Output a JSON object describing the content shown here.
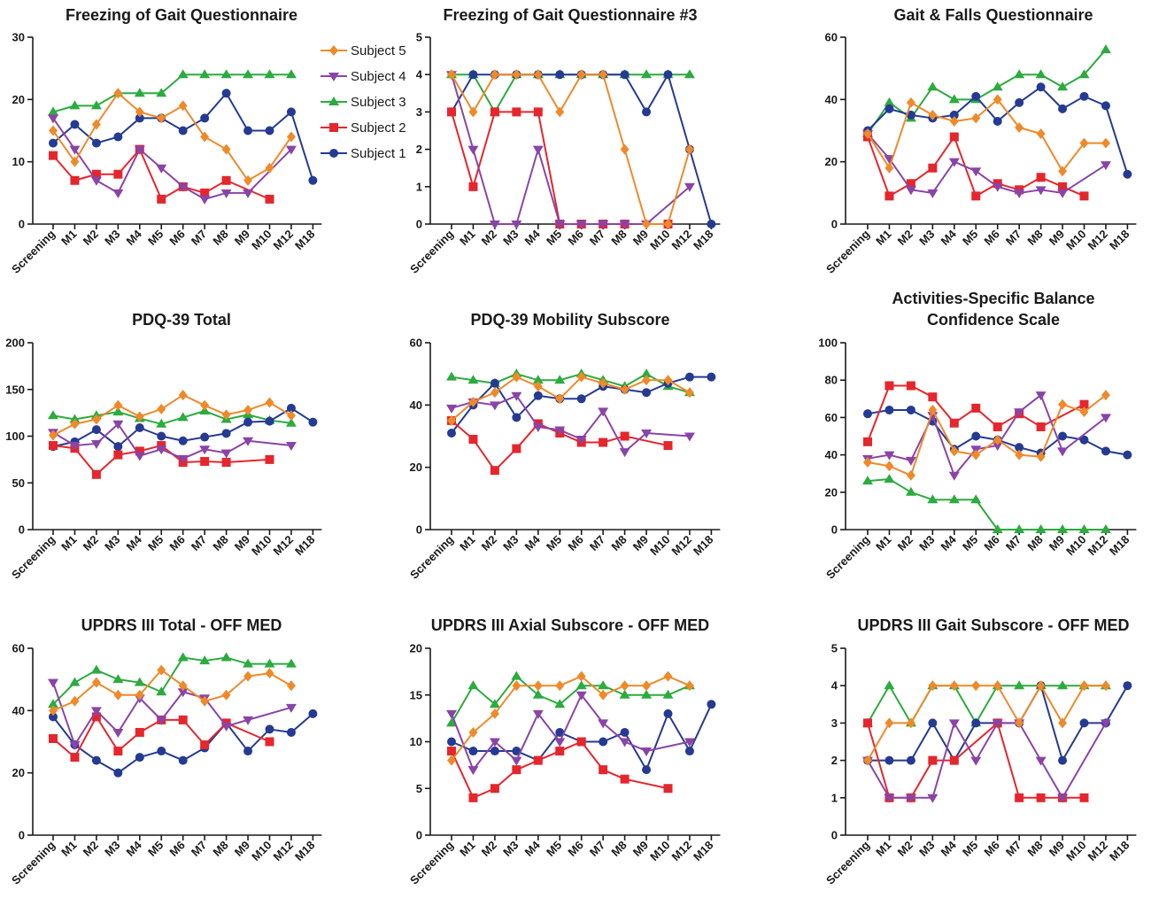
{
  "legend": [
    {
      "series": "s5",
      "label": "Subject 5"
    },
    {
      "series": "s4",
      "label": "Subject 4"
    },
    {
      "series": "s3",
      "label": "Subject 3"
    },
    {
      "series": "s2",
      "label": "Subject 2"
    },
    {
      "series": "s1",
      "label": "Subject 1"
    }
  ],
  "series_styles": {
    "s5": {
      "color": "#ee8a2a",
      "marker": "diamond"
    },
    "s4": {
      "color": "#8a44a8",
      "marker": "triangle-down"
    },
    "s3": {
      "color": "#2cab3e",
      "marker": "triangle-up"
    },
    "s2": {
      "color": "#e5262d",
      "marker": "square"
    },
    "s1": {
      "color": "#253a92",
      "marker": "circle"
    }
  },
  "chart_data": [
    {
      "type": "line",
      "title": [
        "Freezing of Gait Questionnaire"
      ],
      "categories": [
        "Screening",
        "M1",
        "M2",
        "M3",
        "M4",
        "M5",
        "M6",
        "M7",
        "M8",
        "M9",
        "M10",
        "M12",
        "M18"
      ],
      "ylim": [
        0,
        30
      ],
      "yticks": [
        0,
        10,
        20,
        30
      ],
      "series": [
        {
          "id": "s3",
          "name": "Subject 3",
          "values": [
            18,
            19,
            19,
            21,
            21,
            21,
            24,
            24,
            24,
            24,
            24,
            24,
            null
          ]
        },
        {
          "id": "s1",
          "name": "Subject 1",
          "values": [
            13,
            16,
            13,
            14,
            17,
            17,
            15,
            17,
            21,
            15,
            15,
            18,
            7
          ]
        },
        {
          "id": "s2",
          "name": "Subject 2",
          "values": [
            11,
            7,
            8,
            8,
            12,
            4,
            6,
            5,
            7,
            null,
            4,
            null,
            null
          ]
        },
        {
          "id": "s4",
          "name": "Subject 4",
          "values": [
            17,
            12,
            7,
            5,
            12,
            9,
            6,
            4,
            5,
            5,
            null,
            12,
            null
          ]
        },
        {
          "id": "s5",
          "name": "Subject 5",
          "values": [
            15,
            10,
            16,
            21,
            18,
            17,
            19,
            14,
            12,
            7,
            9,
            14,
            null
          ]
        }
      ]
    },
    {
      "type": "line",
      "title": [
        "Freezing of Gait Questionnaire #3"
      ],
      "categories": [
        "Screening",
        "M1",
        "M2",
        "M3",
        "M4",
        "M5",
        "M6",
        "M7",
        "M8",
        "M9",
        "M10",
        "M12",
        "M18"
      ],
      "ylim": [
        0,
        5
      ],
      "yticks": [
        0,
        1,
        2,
        3,
        4,
        5
      ],
      "series": [
        {
          "id": "s3",
          "name": "Subject 3",
          "values": [
            4,
            4,
            3,
            4,
            4,
            4,
            4,
            4,
            4,
            4,
            4,
            4,
            null
          ]
        },
        {
          "id": "s1",
          "name": "Subject 1",
          "values": [
            3,
            4,
            4,
            4,
            4,
            4,
            4,
            4,
            4,
            3,
            4,
            2,
            0
          ]
        },
        {
          "id": "s2",
          "name": "Subject 2",
          "values": [
            3,
            1,
            3,
            3,
            3,
            0,
            0,
            0,
            0,
            null,
            0,
            null,
            null
          ]
        },
        {
          "id": "s4",
          "name": "Subject 4",
          "values": [
            4,
            2,
            0,
            0,
            2,
            0,
            0,
            0,
            0,
            0,
            null,
            1,
            null
          ]
        },
        {
          "id": "s5",
          "name": "Subject 5",
          "values": [
            4,
            3,
            4,
            4,
            4,
            3,
            4,
            4,
            2,
            0,
            0,
            2,
            null
          ]
        }
      ]
    },
    {
      "type": "line",
      "title": [
        "Gait & Falls Questionnaire"
      ],
      "categories": [
        "Screening",
        "M1",
        "M2",
        "M3",
        "M4",
        "M5",
        "M6",
        "M7",
        "M8",
        "M9",
        "M10",
        "M12",
        "M18"
      ],
      "ylim": [
        0,
        60
      ],
      "yticks": [
        0,
        20,
        40,
        60
      ],
      "series": [
        {
          "id": "s3",
          "name": "Subject 3",
          "values": [
            29,
            39,
            34,
            44,
            40,
            40,
            44,
            48,
            48,
            44,
            48,
            56,
            null
          ]
        },
        {
          "id": "s1",
          "name": "Subject 1",
          "values": [
            30,
            37,
            35,
            34,
            35,
            41,
            33,
            39,
            44,
            37,
            41,
            38,
            16
          ]
        },
        {
          "id": "s2",
          "name": "Subject 2",
          "values": [
            28,
            9,
            13,
            18,
            28,
            9,
            13,
            11,
            15,
            12,
            9,
            null,
            null
          ]
        },
        {
          "id": "s4",
          "name": "Subject 4",
          "values": [
            29,
            21,
            11,
            10,
            20,
            17,
            12,
            10,
            11,
            10,
            null,
            19,
            null
          ]
        },
        {
          "id": "s5",
          "name": "Subject 5",
          "values": [
            29,
            18,
            39,
            35,
            33,
            34,
            40,
            31,
            29,
            17,
            26,
            26,
            null
          ]
        }
      ]
    },
    {
      "type": "line",
      "title": [
        "PDQ-39 Total"
      ],
      "categories": [
        "Screening",
        "M1",
        "M2",
        "M3",
        "M4",
        "M5",
        "M6",
        "M7",
        "M8",
        "M9",
        "M10",
        "M12",
        "M18"
      ],
      "ylim": [
        0,
        200
      ],
      "yticks": [
        0,
        50,
        100,
        150,
        200
      ],
      "series": [
        {
          "id": "s3",
          "name": "Subject 3",
          "values": [
            122,
            118,
            122,
            126,
            119,
            113,
            120,
            127,
            118,
            123,
            117,
            114,
            null
          ]
        },
        {
          "id": "s1",
          "name": "Subject 1",
          "values": [
            89,
            94,
            107,
            89,
            109,
            100,
            95,
            99,
            103,
            115,
            116,
            130,
            115
          ]
        },
        {
          "id": "s2",
          "name": "Subject 2",
          "values": [
            90,
            87,
            59,
            80,
            84,
            90,
            72,
            73,
            72,
            null,
            75,
            null,
            null
          ]
        },
        {
          "id": "s4",
          "name": "Subject 4",
          "values": [
            104,
            90,
            92,
            113,
            79,
            86,
            76,
            86,
            82,
            95,
            null,
            90,
            null
          ]
        },
        {
          "id": "s5",
          "name": "Subject 5",
          "values": [
            101,
            113,
            118,
            133,
            121,
            129,
            144,
            133,
            123,
            128,
            136,
            122,
            null
          ]
        }
      ]
    },
    {
      "type": "line",
      "title": [
        "PDQ-39 Mobility Subscore"
      ],
      "categories": [
        "Screening",
        "M1",
        "M2",
        "M3",
        "M4",
        "M5",
        "M6",
        "M7",
        "M8",
        "M9",
        "M10",
        "M12",
        "M18"
      ],
      "ylim": [
        0,
        60
      ],
      "yticks": [
        0,
        20,
        40,
        60
      ],
      "series": [
        {
          "id": "s3",
          "name": "Subject 3",
          "values": [
            49,
            48,
            47,
            50,
            48,
            48,
            50,
            48,
            46,
            50,
            46,
            44,
            null
          ]
        },
        {
          "id": "s1",
          "name": "Subject 1",
          "values": [
            31,
            40,
            47,
            36,
            43,
            42,
            42,
            46,
            45,
            44,
            47,
            49,
            49
          ]
        },
        {
          "id": "s2",
          "name": "Subject 2",
          "values": [
            35,
            29,
            19,
            26,
            34,
            31,
            28,
            28,
            30,
            null,
            27,
            null,
            null
          ]
        },
        {
          "id": "s4",
          "name": "Subject 4",
          "values": [
            39,
            41,
            40,
            43,
            33,
            32,
            29,
            38,
            25,
            31,
            null,
            30,
            null
          ]
        },
        {
          "id": "s5",
          "name": "Subject 5",
          "values": [
            35,
            41,
            44,
            49,
            46,
            42,
            49,
            47,
            45,
            48,
            48,
            44,
            null
          ]
        }
      ]
    },
    {
      "type": "line",
      "title": [
        "Activities-Specific Balance",
        "Confidence Scale"
      ],
      "categories": [
        "Screening",
        "M1",
        "M2",
        "M3",
        "M4",
        "M5",
        "M6",
        "M7",
        "M8",
        "M9",
        "M10",
        "M12",
        "M18"
      ],
      "ylim": [
        0,
        100
      ],
      "yticks": [
        0,
        20,
        40,
        60,
        80,
        100
      ],
      "series": [
        {
          "id": "s3",
          "name": "Subject 3",
          "values": [
            26,
            27,
            20,
            16,
            16,
            16,
            0,
            0,
            0,
            0,
            0,
            0,
            null
          ]
        },
        {
          "id": "s1",
          "name": "Subject 1",
          "values": [
            62,
            64,
            64,
            58,
            43,
            50,
            48,
            44,
            41,
            50,
            48,
            42,
            40
          ]
        },
        {
          "id": "s2",
          "name": "Subject 2",
          "values": [
            47,
            77,
            77,
            71,
            57,
            65,
            55,
            62,
            55,
            null,
            67,
            null,
            null
          ]
        },
        {
          "id": "s4",
          "name": "Subject 4",
          "values": [
            38,
            40,
            37,
            61,
            29,
            43,
            45,
            63,
            72,
            42,
            null,
            60,
            null
          ]
        },
        {
          "id": "s5",
          "name": "Subject 5",
          "values": [
            36,
            34,
            29,
            64,
            42,
            40,
            48,
            40,
            39,
            67,
            63,
            72,
            null
          ]
        }
      ]
    },
    {
      "type": "line",
      "title": [
        "UPDRS III Total -  OFF MED"
      ],
      "categories": [
        "Screening",
        "M1",
        "M2",
        "M3",
        "M4",
        "M5",
        "M6",
        "M7",
        "M8",
        "M9",
        "M10",
        "M12",
        "M18"
      ],
      "ylim": [
        0,
        60
      ],
      "yticks": [
        0,
        20,
        40,
        60
      ],
      "series": [
        {
          "id": "s3",
          "name": "Subject 3",
          "values": [
            42,
            49,
            53,
            50,
            49,
            46,
            57,
            56,
            57,
            55,
            55,
            55,
            null
          ]
        },
        {
          "id": "s1",
          "name": "Subject 1",
          "values": [
            38,
            29,
            24,
            20,
            25,
            27,
            24,
            28,
            36,
            27,
            34,
            33,
            39
          ]
        },
        {
          "id": "s2",
          "name": "Subject 2",
          "values": [
            31,
            25,
            38,
            27,
            33,
            37,
            37,
            29,
            36,
            null,
            30,
            null,
            null
          ]
        },
        {
          "id": "s4",
          "name": "Subject 4",
          "values": [
            49,
            29,
            40,
            33,
            44,
            37,
            46,
            44,
            35,
            37,
            null,
            41,
            null
          ]
        },
        {
          "id": "s5",
          "name": "Subject 5",
          "values": [
            40,
            43,
            49,
            45,
            45,
            53,
            48,
            43,
            45,
            51,
            52,
            48,
            null
          ]
        }
      ]
    },
    {
      "type": "line",
      "title": [
        "UPDRS III Axial Subscore -  OFF MED"
      ],
      "categories": [
        "Screening",
        "M1",
        "M2",
        "M3",
        "M4",
        "M5",
        "M6",
        "M7",
        "M8",
        "M9",
        "M10",
        "M12",
        "M18"
      ],
      "ylim": [
        0,
        20
      ],
      "yticks": [
        0,
        5,
        10,
        15,
        20
      ],
      "series": [
        {
          "id": "s3",
          "name": "Subject 3",
          "values": [
            12,
            16,
            14,
            17,
            15,
            14,
            16,
            16,
            15,
            15,
            15,
            16,
            null
          ]
        },
        {
          "id": "s1",
          "name": "Subject 1",
          "values": [
            10,
            9,
            9,
            9,
            8,
            11,
            10,
            10,
            11,
            7,
            13,
            9,
            14
          ]
        },
        {
          "id": "s2",
          "name": "Subject 2",
          "values": [
            9,
            4,
            5,
            7,
            8,
            9,
            10,
            7,
            6,
            null,
            5,
            null,
            null
          ]
        },
        {
          "id": "s4",
          "name": "Subject 4",
          "values": [
            13,
            7,
            10,
            8,
            13,
            10,
            15,
            12,
            10,
            9,
            null,
            10,
            null
          ]
        },
        {
          "id": "s5",
          "name": "Subject 5",
          "values": [
            8,
            11,
            13,
            16,
            16,
            16,
            17,
            15,
            16,
            16,
            17,
            16,
            null
          ]
        }
      ]
    },
    {
      "type": "line",
      "title": [
        "UPDRS III Gait Subscore - OFF MED"
      ],
      "categories": [
        "Screening",
        "M1",
        "M2",
        "M3",
        "M4",
        "M5",
        "M6",
        "M7",
        "M8",
        "M9",
        "M10",
        "M12",
        "M18"
      ],
      "ylim": [
        0,
        5
      ],
      "yticks": [
        0,
        1,
        2,
        3,
        4,
        5
      ],
      "series": [
        {
          "id": "s3",
          "name": "Subject 3",
          "values": [
            3,
            4,
            3,
            4,
            4,
            3,
            4,
            4,
            4,
            4,
            4,
            4,
            null
          ]
        },
        {
          "id": "s1",
          "name": "Subject 1",
          "values": [
            2,
            2,
            2,
            3,
            2,
            3,
            3,
            3,
            4,
            2,
            3,
            3,
            4
          ]
        },
        {
          "id": "s2",
          "name": "Subject 2",
          "values": [
            3,
            1,
            1,
            2,
            2,
            null,
            3,
            1,
            1,
            1,
            1,
            null,
            null
          ]
        },
        {
          "id": "s4",
          "name": "Subject 4",
          "values": [
            2,
            1,
            1,
            1,
            3,
            2,
            3,
            3,
            2,
            1,
            null,
            3,
            null
          ]
        },
        {
          "id": "s5",
          "name": "Subject 5",
          "values": [
            2,
            3,
            3,
            4,
            4,
            4,
            4,
            3,
            4,
            3,
            4,
            4,
            null
          ]
        }
      ]
    }
  ]
}
